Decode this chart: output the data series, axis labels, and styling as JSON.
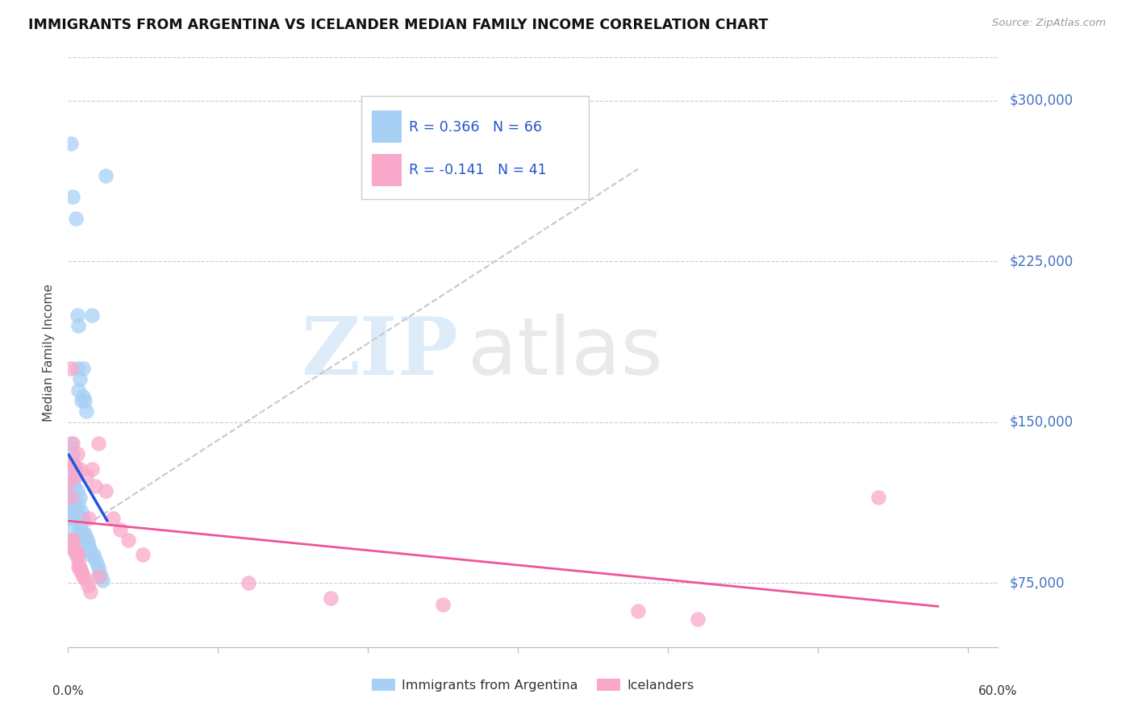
{
  "title": "IMMIGRANTS FROM ARGENTINA VS ICELANDER MEDIAN FAMILY INCOME CORRELATION CHART",
  "source": "Source: ZipAtlas.com",
  "ylabel": "Median Family Income",
  "yticks": [
    75000,
    150000,
    225000,
    300000
  ],
  "ytick_labels": [
    "$75,000",
    "$150,000",
    "$225,000",
    "$300,000"
  ],
  "watermark_zip": "ZIP",
  "watermark_atlas": "atlas",
  "legend_r1": "0.366",
  "legend_n1": "66",
  "legend_r2": "-0.141",
  "legend_n2": "41",
  "blue_color": "#A8D0F5",
  "pink_color": "#F9A8C9",
  "trend_blue": "#2255DD",
  "trend_pink": "#EE5599",
  "trend_diagonal_color": "#C8C8C8",
  "xlim": [
    0.0,
    0.62
  ],
  "ylim": [
    45000,
    320000
  ],
  "background_color": "#FFFFFF",
  "grid_color": "#CCCCCC",
  "arg_x": [
    0.001,
    0.001,
    0.001,
    0.001,
    0.002,
    0.002,
    0.002,
    0.002,
    0.003,
    0.003,
    0.003,
    0.003,
    0.004,
    0.004,
    0.004,
    0.005,
    0.005,
    0.005,
    0.006,
    0.006,
    0.006,
    0.007,
    0.007,
    0.007,
    0.008,
    0.008,
    0.008,
    0.009,
    0.009,
    0.01,
    0.01,
    0.01,
    0.011,
    0.011,
    0.012,
    0.012,
    0.013,
    0.014,
    0.015,
    0.016,
    0.017,
    0.018,
    0.019,
    0.02,
    0.021,
    0.022,
    0.023,
    0.025,
    0.001,
    0.001,
    0.002,
    0.002,
    0.003,
    0.004,
    0.005,
    0.005,
    0.006,
    0.007,
    0.008,
    0.009,
    0.01,
    0.011,
    0.012,
    0.013,
    0.014,
    0.015
  ],
  "arg_y": [
    130000,
    120000,
    115000,
    105000,
    280000,
    140000,
    125000,
    110000,
    255000,
    135000,
    122000,
    108000,
    130000,
    120000,
    95000,
    245000,
    128000,
    105000,
    200000,
    175000,
    118000,
    195000,
    165000,
    112000,
    170000,
    115000,
    100000,
    160000,
    108000,
    175000,
    162000,
    105000,
    160000,
    98000,
    155000,
    96000,
    94000,
    92000,
    90000,
    200000,
    88000,
    86000,
    84000,
    82000,
    80000,
    78000,
    76000,
    265000,
    100000,
    95000,
    118000,
    92000,
    116000,
    112000,
    110000,
    88000,
    107000,
    105000,
    102000,
    100000,
    98000,
    96000,
    94000,
    92000,
    90000,
    88000
  ],
  "ice_x": [
    0.001,
    0.001,
    0.002,
    0.002,
    0.003,
    0.003,
    0.004,
    0.005,
    0.005,
    0.006,
    0.006,
    0.007,
    0.008,
    0.008,
    0.009,
    0.01,
    0.012,
    0.014,
    0.016,
    0.018,
    0.02,
    0.025,
    0.03,
    0.035,
    0.04,
    0.05,
    0.12,
    0.175,
    0.25,
    0.38,
    0.42,
    0.54,
    0.003,
    0.004,
    0.006,
    0.007,
    0.009,
    0.011,
    0.013,
    0.015,
    0.02
  ],
  "ice_y": [
    130000,
    122000,
    175000,
    115000,
    140000,
    95000,
    130000,
    125000,
    90000,
    135000,
    88000,
    85000,
    128000,
    82000,
    80000,
    78000,
    125000,
    105000,
    128000,
    120000,
    140000,
    118000,
    105000,
    100000,
    95000,
    88000,
    75000,
    68000,
    65000,
    62000,
    58000,
    115000,
    95000,
    90000,
    88000,
    82000,
    80000,
    77000,
    74000,
    71000,
    78000
  ]
}
